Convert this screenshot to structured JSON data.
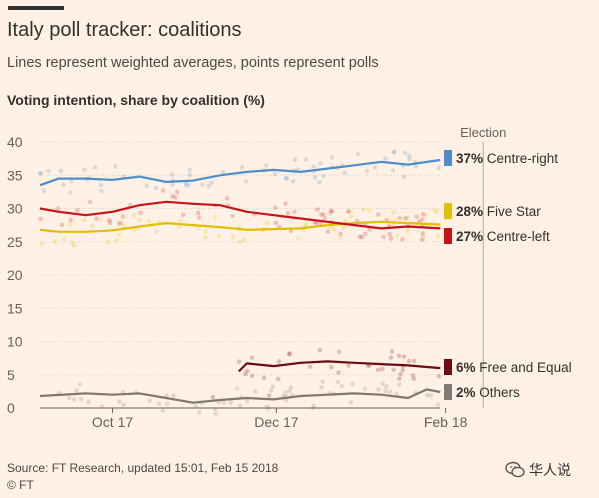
{
  "header": {
    "title": "Italy poll tracker: coalitions",
    "subtitle": "Lines represent weighted averages, points represent polls",
    "y_title": "Voting intention, share by coalition (%)"
  },
  "footer": {
    "source": "Source: FT Research, updated 15:01, Feb 15 2018",
    "credit": "© FT"
  },
  "watermark": {
    "text": "华人说",
    "icon": "wechat-icon"
  },
  "chart_data": {
    "type": "line",
    "ylim": [
      0,
      40
    ],
    "yticks": [
      0,
      5,
      10,
      15,
      20,
      25,
      30,
      35,
      40
    ],
    "xticks": [
      {
        "date": "2017-10-17",
        "label": "Oct 17"
      },
      {
        "date": "2017-12-17",
        "label": "Dec 17"
      },
      {
        "date": "2018-02-18",
        "label": "Feb 18"
      }
    ],
    "xrange": [
      "2017-09-20",
      "2018-03-08"
    ],
    "election_label": "Election",
    "election_date": "2018-03-04",
    "grid": true,
    "legend": "right, at series end",
    "series": [
      {
        "name": "Centre-right",
        "label_value": "37%",
        "color": "#4e8fca",
        "points": [
          [
            "2017-09-20",
            33.5
          ],
          [
            "2017-09-27",
            34.5
          ],
          [
            "2017-10-07",
            34.5
          ],
          [
            "2017-10-17",
            34.3
          ],
          [
            "2017-10-27",
            34.8
          ],
          [
            "2017-11-06",
            34.0
          ],
          [
            "2017-11-16",
            34.2
          ],
          [
            "2017-11-26",
            35.0
          ],
          [
            "2017-12-06",
            35.5
          ],
          [
            "2017-12-16",
            35.8
          ],
          [
            "2017-12-26",
            35.5
          ],
          [
            "2018-01-05",
            36.0
          ],
          [
            "2018-01-15",
            36.5
          ],
          [
            "2018-01-25",
            37.0
          ],
          [
            "2018-02-04",
            36.6
          ],
          [
            "2018-02-16",
            37.3
          ]
        ]
      },
      {
        "name": "Five Star",
        "label_value": "28%",
        "color": "#e0c000",
        "points": [
          [
            "2017-09-20",
            26.8
          ],
          [
            "2017-09-27",
            26.5
          ],
          [
            "2017-10-07",
            26.5
          ],
          [
            "2017-10-17",
            26.7
          ],
          [
            "2017-10-27",
            27.3
          ],
          [
            "2017-11-06",
            27.8
          ],
          [
            "2017-11-16",
            27.5
          ],
          [
            "2017-11-26",
            27.2
          ],
          [
            "2017-12-06",
            26.8
          ],
          [
            "2017-12-16",
            26.9
          ],
          [
            "2017-12-26",
            27.0
          ],
          [
            "2018-01-05",
            27.5
          ],
          [
            "2018-01-15",
            27.8
          ],
          [
            "2018-01-25",
            28.0
          ],
          [
            "2018-02-04",
            27.8
          ],
          [
            "2018-02-16",
            27.6
          ]
        ]
      },
      {
        "name": "Centre-left",
        "label_value": "27%",
        "color": "#c9131b",
        "points": [
          [
            "2017-09-20",
            30.0
          ],
          [
            "2017-09-27",
            29.5
          ],
          [
            "2017-10-07",
            29.0
          ],
          [
            "2017-10-17",
            29.5
          ],
          [
            "2017-10-27",
            30.5
          ],
          [
            "2017-11-06",
            31.0
          ],
          [
            "2017-11-16",
            30.7
          ],
          [
            "2017-11-26",
            30.5
          ],
          [
            "2017-12-06",
            29.5
          ],
          [
            "2017-12-16",
            29.0
          ],
          [
            "2017-12-26",
            28.5
          ],
          [
            "2018-01-05",
            28.0
          ],
          [
            "2018-01-15",
            27.5
          ],
          [
            "2018-01-25",
            27.0
          ],
          [
            "2018-02-04",
            27.3
          ],
          [
            "2018-02-16",
            27.0
          ]
        ]
      },
      {
        "name": "Free and Equal",
        "label_value": "6%",
        "color": "#6e0b15",
        "points": [
          [
            "2017-12-03",
            5.5
          ],
          [
            "2017-12-06",
            6.7
          ],
          [
            "2017-12-16",
            6.3
          ],
          [
            "2017-12-26",
            6.8
          ],
          [
            "2018-01-05",
            7.0
          ],
          [
            "2018-01-15",
            6.8
          ],
          [
            "2018-01-25",
            6.6
          ],
          [
            "2018-02-04",
            6.4
          ],
          [
            "2018-02-16",
            6.0
          ]
        ]
      },
      {
        "name": "Others",
        "label_value": "2%",
        "color": "#807973",
        "points": [
          [
            "2017-09-20",
            1.8
          ],
          [
            "2017-10-07",
            2.2
          ],
          [
            "2017-10-17",
            2.0
          ],
          [
            "2017-10-27",
            2.2
          ],
          [
            "2017-11-06",
            1.5
          ],
          [
            "2017-11-16",
            0.8
          ],
          [
            "2017-11-26",
            1.2
          ],
          [
            "2017-12-06",
            1.5
          ],
          [
            "2017-12-16",
            1.3
          ],
          [
            "2017-12-26",
            1.8
          ],
          [
            "2018-01-05",
            2.0
          ],
          [
            "2018-01-15",
            2.2
          ],
          [
            "2018-01-25",
            2.0
          ],
          [
            "2018-02-04",
            1.5
          ],
          [
            "2018-02-11",
            2.8
          ],
          [
            "2018-02-16",
            2.4
          ]
        ]
      }
    ]
  }
}
